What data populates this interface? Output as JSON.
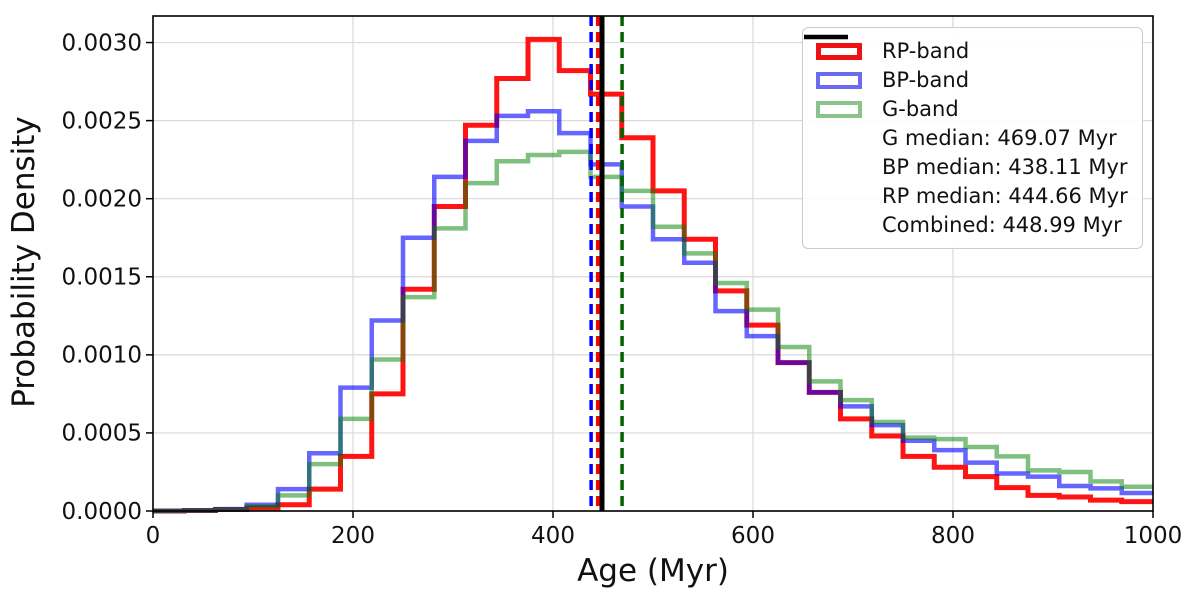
{
  "chart_data": {
    "type": "histogram-step",
    "title": "",
    "xlabel": "Age (Myr)",
    "ylabel": "Probability Density",
    "xlim": [
      0,
      1000
    ],
    "ylim": [
      0,
      0.00317
    ],
    "x_ticks": [
      0,
      200,
      400,
      600,
      800,
      1000
    ],
    "y_ticks": [
      "0.0000",
      "0.0005",
      "0.0010",
      "0.0015",
      "0.0020",
      "0.0025",
      "0.0030"
    ],
    "grid": true,
    "grid_color": "#d9d9d9",
    "bin_start": 0,
    "bin_width": 31.25,
    "n_bins": 32,
    "series": [
      {
        "name": "RP-band",
        "color": "#ff0000",
        "opacity": 0.92,
        "line_width": 5,
        "values": [
          0,
          3e-06,
          1e-05,
          2e-05,
          4e-05,
          0.00014,
          0.00035,
          0.00075,
          0.00142,
          0.00195,
          0.00247,
          0.00277,
          0.00302,
          0.00282,
          0.00267,
          0.00239,
          0.00205,
          0.00174,
          0.00141,
          0.00119,
          0.00095,
          0.00076,
          0.00059,
          0.00048,
          0.00035,
          0.00028,
          0.00022,
          0.00015,
          0.0001,
          9e-05,
          7e-05,
          6e-05
        ]
      },
      {
        "name": "BP-band",
        "color": "#0000ff",
        "opacity": 0.6,
        "line_width": 4.5,
        "values": [
          0,
          3e-06,
          1.2e-05,
          4e-05,
          0.00014,
          0.00037,
          0.00079,
          0.00122,
          0.00175,
          0.00214,
          0.00237,
          0.00253,
          0.00256,
          0.00242,
          0.00222,
          0.00195,
          0.00174,
          0.00159,
          0.00128,
          0.00112,
          0.00095,
          0.00076,
          0.00067,
          0.00055,
          0.00045,
          0.00039,
          0.00031,
          0.00024,
          0.00022,
          0.00016,
          0.000145,
          0.000115
        ]
      },
      {
        "name": "G-band",
        "color": "#008000",
        "opacity": 0.5,
        "line_width": 4.5,
        "values": [
          0,
          3e-06,
          1e-05,
          3e-05,
          0.0001,
          0.0003,
          0.00059,
          0.00097,
          0.00137,
          0.00181,
          0.0021,
          0.00224,
          0.00228,
          0.0023,
          0.00214,
          0.00205,
          0.00182,
          0.00165,
          0.00146,
          0.00129,
          0.00105,
          0.00083,
          0.00071,
          0.00057,
          0.00047,
          0.00046,
          0.00041,
          0.00035,
          0.00026,
          0.00025,
          0.00019,
          0.000155
        ]
      }
    ],
    "vlines": [
      {
        "name": "median-line-g",
        "label": "G median: 469.07 Myr",
        "x": 469.07,
        "color": "#006400",
        "dash": true,
        "line_width": 3.5
      },
      {
        "name": "median-line-bp",
        "label": "BP median: 438.11 Myr",
        "x": 438.11,
        "color": "#0000ff",
        "dash": true,
        "line_width": 3.5
      },
      {
        "name": "median-line-rp",
        "label": "RP median: 444.66 Myr",
        "x": 444.66,
        "color": "#ff0000",
        "dash": true,
        "line_width": 3.5
      },
      {
        "name": "median-line-combined",
        "label": "Combined: 448.99 Myr",
        "x": 448.99,
        "color": "#000000",
        "dash": false,
        "line_width": 5
      }
    ],
    "legend_position": "upper right"
  },
  "legend": {
    "items": [
      {
        "label": "RP-band",
        "swatch": "patch",
        "color": "#ee1111",
        "border_width": 5
      },
      {
        "label": "BP-band",
        "swatch": "patch",
        "color": "#6b6bf0",
        "border_width": 4
      },
      {
        "label": "G-band",
        "swatch": "patch",
        "color": "#8cc28c",
        "border_width": 4
      },
      {
        "label": "G median: 469.07 Myr",
        "swatch": "line",
        "color": "#006400",
        "dash": true
      },
      {
        "label": "BP median: 438.11 Myr",
        "swatch": "line",
        "color": "#1111ee",
        "dash": true
      },
      {
        "label": "RP median: 444.66 Myr",
        "swatch": "line",
        "color": "#ee2222",
        "dash": true
      },
      {
        "label": "Combined: 448.99 Myr",
        "swatch": "line",
        "color": "#000000",
        "dash": false
      }
    ]
  }
}
